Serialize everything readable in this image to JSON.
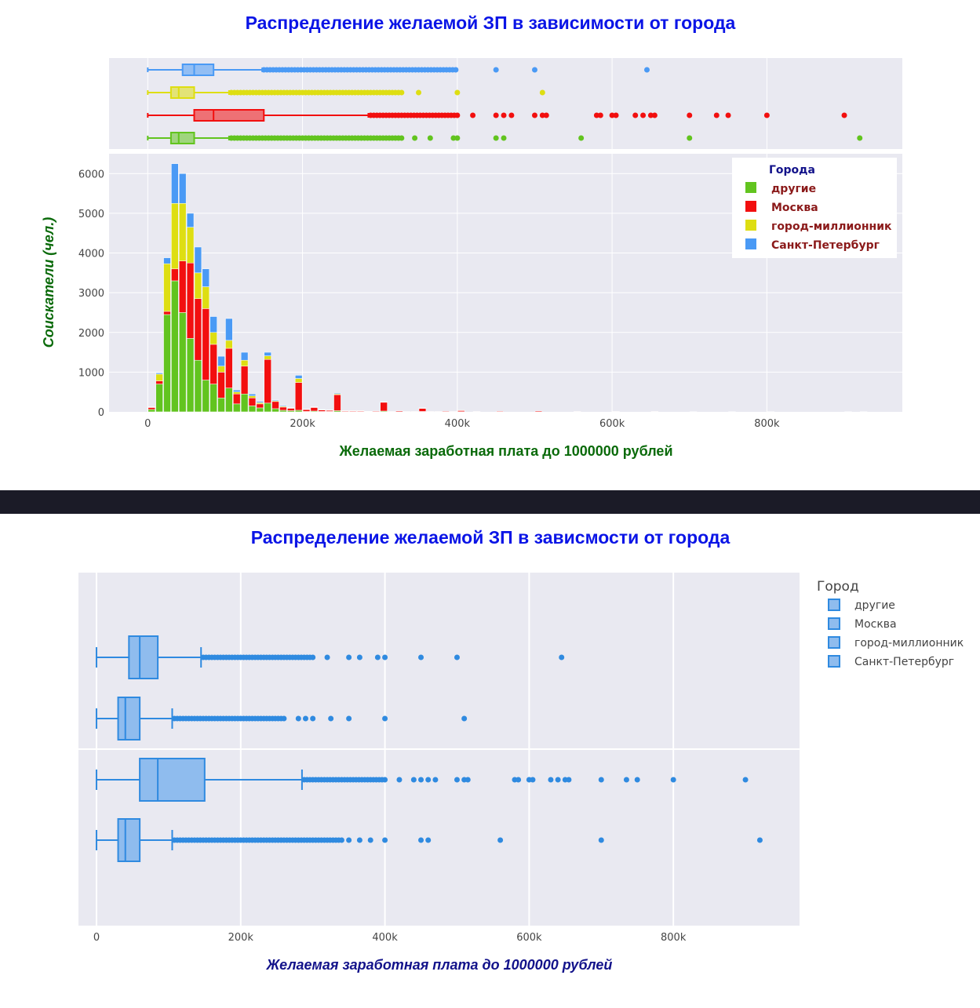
{
  "colors": {
    "drugie": "#62c41f",
    "moskva": "#f20f0f",
    "million": "#dede12",
    "spb": "#4a9af5",
    "box2": "#2f8ae0",
    "plot_bg": "#e9e9f1"
  },
  "chart_data": [
    {
      "type": "bar",
      "title": "Распределение желаемой ЗП в зависимости от города",
      "xlabel": "Желаемая заработная плата до 1000000 рублей",
      "ylabel_main": "Соискатели ",
      "ylabel_unit": "(чел.)",
      "xlim": [
        -50000,
        975000
      ],
      "ylim": [
        0,
        6500
      ],
      "x_ticks": [
        0,
        200000,
        400000,
        600000,
        800000
      ],
      "x_tick_labels": [
        "0",
        "200k",
        "400k",
        "600k",
        "800k"
      ],
      "y_ticks": [
        0,
        1000,
        2000,
        3000,
        4000,
        5000,
        6000
      ],
      "y_tick_labels": [
        "0",
        "1000",
        "2000",
        "3000",
        "4000",
        "5000",
        "6000"
      ],
      "legend": {
        "title": "Города",
        "position": "top-right",
        "items": [
          "другие",
          "Москва",
          "город-миллионник",
          "Санкт-Петербург"
        ]
      },
      "stack_order": [
        "другие",
        "Москва",
        "город-миллионник",
        "Санкт-Петербург"
      ],
      "bin_width": 10000,
      "bins": [
        {
          "x": 5000,
          "v": [
            60,
            50,
            10,
            10
          ]
        },
        {
          "x": 15000,
          "v": [
            700,
            80,
            170,
            30
          ]
        },
        {
          "x": 25000,
          "v": [
            2450,
            80,
            1200,
            150
          ]
        },
        {
          "x": 35000,
          "v": [
            3300,
            300,
            1650,
            1000
          ]
        },
        {
          "x": 45000,
          "v": [
            2500,
            1300,
            1450,
            750
          ]
        },
        {
          "x": 55000,
          "v": [
            1850,
            1900,
            900,
            350
          ]
        },
        {
          "x": 65000,
          "v": [
            1300,
            1550,
            650,
            650
          ]
        },
        {
          "x": 75000,
          "v": [
            800,
            1800,
            550,
            450
          ]
        },
        {
          "x": 85000,
          "v": [
            700,
            1000,
            300,
            400
          ]
        },
        {
          "x": 95000,
          "v": [
            350,
            650,
            150,
            250
          ]
        },
        {
          "x": 105000,
          "v": [
            600,
            1000,
            200,
            550
          ]
        },
        {
          "x": 115000,
          "v": [
            200,
            250,
            50,
            50
          ]
        },
        {
          "x": 125000,
          "v": [
            450,
            700,
            150,
            200
          ]
        },
        {
          "x": 135000,
          "v": [
            150,
            200,
            50,
            50
          ]
        },
        {
          "x": 145000,
          "v": [
            100,
            100,
            30,
            30
          ]
        },
        {
          "x": 155000,
          "v": [
            220,
            1100,
            90,
            90
          ]
        },
        {
          "x": 165000,
          "v": [
            80,
            180,
            20,
            20
          ]
        },
        {
          "x": 175000,
          "v": [
            40,
            80,
            20,
            20
          ]
        },
        {
          "x": 185000,
          "v": [
            30,
            60,
            10,
            10
          ]
        },
        {
          "x": 195000,
          "v": [
            40,
            700,
            100,
            80
          ]
        },
        {
          "x": 205000,
          "v": [
            10,
            50,
            5,
            5
          ]
        },
        {
          "x": 215000,
          "v": [
            20,
            90,
            10,
            10
          ]
        },
        {
          "x": 225000,
          "v": [
            10,
            40,
            5,
            5
          ]
        },
        {
          "x": 235000,
          "v": [
            10,
            30,
            5,
            5
          ]
        },
        {
          "x": 245000,
          "v": [
            30,
            400,
            20,
            20
          ]
        },
        {
          "x": 255000,
          "v": [
            5,
            20,
            5,
            0
          ]
        },
        {
          "x": 265000,
          "v": [
            5,
            20,
            5,
            0
          ]
        },
        {
          "x": 275000,
          "v": [
            5,
            20,
            5,
            0
          ]
        },
        {
          "x": 285000,
          "v": [
            5,
            10,
            0,
            0
          ]
        },
        {
          "x": 295000,
          "v": [
            5,
            15,
            0,
            0
          ]
        },
        {
          "x": 305000,
          "v": [
            20,
            220,
            10,
            10
          ]
        },
        {
          "x": 315000,
          "v": [
            0,
            10,
            0,
            0
          ]
        },
        {
          "x": 325000,
          "v": [
            5,
            20,
            0,
            0
          ]
        },
        {
          "x": 335000,
          "v": [
            0,
            10,
            0,
            0
          ]
        },
        {
          "x": 345000,
          "v": [
            0,
            10,
            0,
            0
          ]
        },
        {
          "x": 355000,
          "v": [
            10,
            80,
            5,
            5
          ]
        },
        {
          "x": 365000,
          "v": [
            0,
            10,
            0,
            0
          ]
        },
        {
          "x": 375000,
          "v": [
            0,
            10,
            0,
            0
          ]
        },
        {
          "x": 385000,
          "v": [
            0,
            15,
            0,
            0
          ]
        },
        {
          "x": 395000,
          "v": [
            0,
            10,
            0,
            0
          ]
        },
        {
          "x": 405000,
          "v": [
            5,
            30,
            5,
            0
          ]
        },
        {
          "x": 425000,
          "v": [
            0,
            10,
            0,
            0
          ]
        },
        {
          "x": 455000,
          "v": [
            0,
            15,
            0,
            0
          ]
        },
        {
          "x": 505000,
          "v": [
            0,
            20,
            0,
            0
          ]
        },
        {
          "x": 555000,
          "v": [
            0,
            10,
            0,
            0
          ]
        },
        {
          "x": 605000,
          "v": [
            0,
            10,
            0,
            0
          ]
        },
        {
          "x": 655000,
          "v": [
            0,
            10,
            0,
            0
          ]
        },
        {
          "x": 705000,
          "v": [
            0,
            5,
            0,
            0
          ]
        },
        {
          "x": 755000,
          "v": [
            0,
            5,
            0,
            0
          ]
        },
        {
          "x": 805000,
          "v": [
            0,
            5,
            0,
            0
          ]
        },
        {
          "x": 905000,
          "v": [
            0,
            5,
            0,
            0
          ]
        },
        {
          "x": 925000,
          "v": [
            5,
            0,
            0,
            0
          ]
        }
      ],
      "marginal_box": [
        {
          "name": "Санкт-Петербург",
          "min": 0,
          "q1": 45000,
          "median": 60000,
          "q3": 85000,
          "upper": 148000,
          "outliers_from": 150000,
          "outliers_to": 400000,
          "extra_outliers": [
            450000,
            500000,
            645000
          ]
        },
        {
          "name": "город-миллионник",
          "min": 0,
          "q1": 30000,
          "median": 40000,
          "q3": 60000,
          "upper": 105000,
          "outliers_from": 108000,
          "outliers_to": 330000,
          "extra_outliers": [
            350000,
            400000,
            510000
          ]
        },
        {
          "name": "Москва",
          "min": 0,
          "q1": 60000,
          "median": 85000,
          "q3": 150000,
          "upper": 285000,
          "outliers_from": 288000,
          "outliers_to": 400000,
          "extra_outliers": [
            420000,
            450000,
            460000,
            470000,
            500000,
            510000,
            515000,
            580000,
            585000,
            600000,
            605000,
            630000,
            640000,
            650000,
            655000,
            700000,
            735000,
            750000,
            800000,
            900000
          ]
        },
        {
          "name": "другие",
          "min": 0,
          "q1": 30000,
          "median": 40000,
          "q3": 60000,
          "upper": 105000,
          "outliers_from": 108000,
          "outliers_to": 330000,
          "extra_outliers": [
            345000,
            365000,
            395000,
            400000,
            450000,
            460000,
            560000,
            700000,
            920000
          ]
        }
      ]
    },
    {
      "type": "box",
      "title": "Распределение желаемой ЗП в зависмости от города",
      "xlabel": "Желаемая заработная плата до 1000000 рублей",
      "xlim": [
        -25000,
        975000
      ],
      "x_ticks": [
        0,
        200000,
        400000,
        600000,
        800000
      ],
      "x_tick_labels": [
        "0",
        "200k",
        "400k",
        "600k",
        "800k"
      ],
      "legend": {
        "title": "Город",
        "position": "right",
        "items": [
          "другие",
          "Москва",
          "город-миллионник",
          "Санкт-Петербург"
        ]
      },
      "boxes": [
        {
          "min": 0,
          "q1": 45000,
          "median": 60000,
          "q3": 85000,
          "upper": 145000,
          "outliers_from": 148000,
          "outliers_to": 300000,
          "extra_outliers": [
            320000,
            350000,
            365000,
            390000,
            400000,
            450000,
            500000,
            645000
          ]
        },
        {
          "min": 0,
          "q1": 30000,
          "median": 40000,
          "q3": 60000,
          "upper": 105000,
          "outliers_from": 108000,
          "outliers_to": 260000,
          "extra_outliers": [
            280000,
            290000,
            300000,
            325000,
            350000,
            400000,
            510000
          ]
        },
        {
          "min": 0,
          "q1": 60000,
          "median": 85000,
          "q3": 150000,
          "upper": 285000,
          "outliers_from": 288000,
          "outliers_to": 400000,
          "extra_outliers": [
            420000,
            440000,
            450000,
            460000,
            470000,
            500000,
            510000,
            515000,
            580000,
            585000,
            600000,
            605000,
            630000,
            640000,
            650000,
            655000,
            700000,
            735000,
            750000,
            800000,
            900000
          ]
        },
        {
          "min": 0,
          "q1": 30000,
          "median": 40000,
          "q3": 60000,
          "upper": 105000,
          "outliers_from": 108000,
          "outliers_to": 340000,
          "extra_outliers": [
            350000,
            365000,
            380000,
            400000,
            450000,
            460000,
            560000,
            700000,
            920000
          ]
        }
      ]
    }
  ]
}
